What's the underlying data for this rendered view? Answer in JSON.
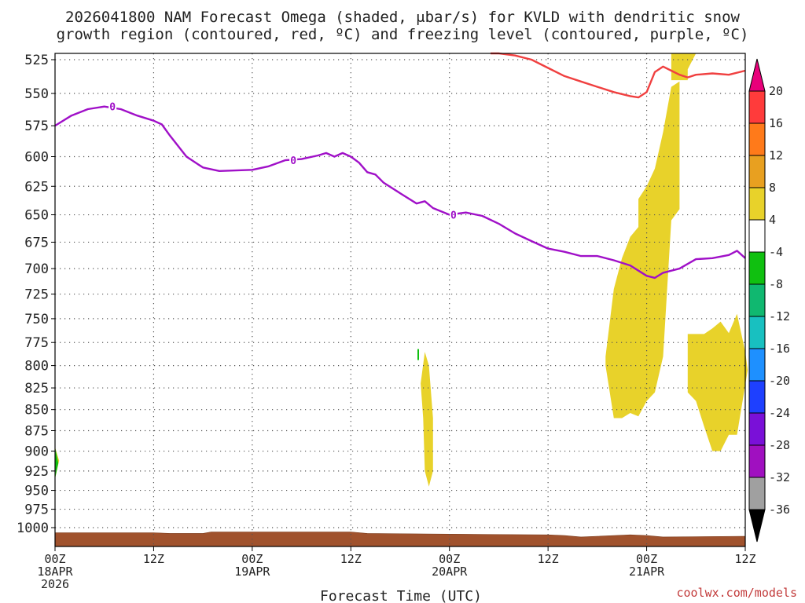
{
  "header": {
    "title_line1": "2026041800 NAM Forecast Omega (shaded, μbar/s) for KVLD with dendritic snow",
    "title_line2": "growth region (contoured, red, ºC) and freezing level (contoured, purple, ºC)"
  },
  "footer": {
    "xlabel": "Forecast Time (UTC)",
    "credit": "coolwx.com/models"
  },
  "chart_data": {
    "type": "heatmap",
    "x_unit": "forecast hours since 2026-04-18 00Z",
    "xlim": [
      0,
      84
    ],
    "ylim": [
      1020,
      515
    ],
    "y_scale": "pressure (hPa), increasing downward",
    "grid": true,
    "y_ticks": [
      525,
      550,
      575,
      600,
      625,
      650,
      675,
      700,
      725,
      750,
      775,
      800,
      825,
      850,
      875,
      900,
      925,
      950,
      975,
      1000
    ],
    "x_ticks": [
      {
        "h": 0,
        "line1": "00Z",
        "line2": "18APR",
        "line3": "2026"
      },
      {
        "h": 12,
        "line1": "12Z",
        "line2": "",
        "line3": ""
      },
      {
        "h": 24,
        "line1": "00Z",
        "line2": "19APR",
        "line3": ""
      },
      {
        "h": 36,
        "line1": "12Z",
        "line2": "",
        "line3": ""
      },
      {
        "h": 48,
        "line1": "00Z",
        "line2": "20APR",
        "line3": ""
      },
      {
        "h": 60,
        "line1": "12Z",
        "line2": "",
        "line3": ""
      },
      {
        "h": 72,
        "line1": "00Z",
        "line2": "21APR",
        "line3": ""
      },
      {
        "h": 84,
        "line1": "12Z",
        "line2": "",
        "line3": ""
      }
    ],
    "colorbar": {
      "labels": [
        "20",
        "16",
        "12",
        "8",
        "4",
        "-4",
        "-8",
        "-12",
        "-16",
        "-20",
        "-24",
        "-28",
        "-32",
        "-36"
      ],
      "colors": [
        "#e8007a",
        "#ff3b3b",
        "#ff7a1a",
        "#e8a020",
        "#e8d22a",
        "#ffffff",
        "#10c010",
        "#10b870",
        "#18c0c0",
        "#1e90ff",
        "#1e40ff",
        "#7a10d8",
        "#a010c0",
        "#a0a0a0",
        "#000000"
      ]
    },
    "freezing_level": {
      "label": "0",
      "color": "#a010c8",
      "points": [
        [
          0,
          575
        ],
        [
          2,
          567
        ],
        [
          4,
          562
        ],
        [
          6,
          560
        ],
        [
          8,
          562
        ],
        [
          10,
          567
        ],
        [
          12,
          571
        ],
        [
          13,
          574
        ],
        [
          14,
          583
        ],
        [
          16,
          600
        ],
        [
          18,
          609
        ],
        [
          20,
          612
        ],
        [
          24,
          611
        ],
        [
          26,
          608
        ],
        [
          28,
          603
        ],
        [
          30,
          602
        ],
        [
          32,
          599
        ],
        [
          33,
          597
        ],
        [
          34,
          600
        ],
        [
          35,
          597
        ],
        [
          36,
          600
        ],
        [
          37,
          605
        ],
        [
          38,
          613
        ],
        [
          39,
          615
        ],
        [
          40,
          622
        ],
        [
          42,
          631
        ],
        [
          44,
          640
        ],
        [
          45,
          638
        ],
        [
          46,
          644
        ],
        [
          48,
          650
        ],
        [
          50,
          648
        ],
        [
          52,
          651
        ],
        [
          54,
          658
        ],
        [
          56,
          667
        ],
        [
          58,
          674
        ],
        [
          60,
          681
        ],
        [
          62,
          684
        ],
        [
          64,
          688
        ],
        [
          66,
          688
        ],
        [
          68,
          692
        ],
        [
          70,
          697
        ],
        [
          71,
          702
        ],
        [
          72,
          707
        ],
        [
          73,
          709
        ],
        [
          74,
          704
        ],
        [
          76,
          700
        ],
        [
          78,
          691
        ],
        [
          80,
          690
        ],
        [
          82,
          687
        ],
        [
          83,
          683
        ],
        [
          84,
          690
        ]
      ]
    },
    "dgz_top": {
      "color": "#f04040",
      "points": [
        [
          53,
          510
        ],
        [
          54,
          513
        ],
        [
          56,
          522
        ],
        [
          58,
          525
        ],
        [
          60,
          531
        ],
        [
          62,
          537
        ],
        [
          64,
          541
        ],
        [
          66,
          545
        ],
        [
          68,
          549
        ],
        [
          70,
          552
        ],
        [
          71,
          553
        ],
        [
          72,
          549
        ],
        [
          73,
          534
        ],
        [
          74,
          530
        ],
        [
          75,
          533
        ],
        [
          76,
          536
        ],
        [
          77,
          538
        ],
        [
          78,
          536
        ],
        [
          80,
          535
        ],
        [
          82,
          536
        ],
        [
          84,
          533
        ]
      ]
    },
    "omega_shading": [
      {
        "value": 4,
        "color": "#e8d22a",
        "polygon": [
          [
            0,
            895
          ],
          [
            0.5,
            912
          ],
          [
            0,
            935
          ]
        ]
      },
      {
        "value": 4,
        "color": "#e8d22a",
        "polygon": [
          [
            45,
            785
          ],
          [
            45.5,
            800
          ],
          [
            46,
            860
          ],
          [
            46,
            925
          ],
          [
            45.5,
            945
          ],
          [
            45,
            925
          ],
          [
            44.8,
            860
          ],
          [
            44.5,
            820
          ]
        ]
      },
      {
        "value": 4,
        "color": "#e8d22a",
        "polygon": [
          [
            70,
            670
          ],
          [
            71,
            661
          ],
          [
            71,
            636
          ],
          [
            72,
            625
          ],
          [
            73,
            610
          ],
          [
            74,
            580
          ],
          [
            75,
            545
          ],
          [
            76,
            541
          ],
          [
            76,
            645
          ],
          [
            75,
            655
          ],
          [
            74,
            790
          ],
          [
            73,
            830
          ],
          [
            72,
            840
          ],
          [
            71,
            858
          ],
          [
            70,
            854
          ],
          [
            69,
            860
          ],
          [
            68,
            860
          ],
          [
            67,
            800
          ],
          [
            67,
            790
          ],
          [
            68,
            720
          ],
          [
            69,
            690
          ]
        ]
      },
      {
        "value": 4,
        "color": "#e8d22a",
        "polygon": [
          [
            75,
            515
          ],
          [
            78,
            515
          ],
          [
            77,
            532
          ],
          [
            77,
            540
          ],
          [
            75,
            540
          ]
        ]
      },
      {
        "value": 4,
        "color": "#e8d22a",
        "polygon": [
          [
            77,
            766
          ],
          [
            79,
            766
          ],
          [
            80,
            760
          ],
          [
            81,
            753
          ],
          [
            82,
            765
          ],
          [
            83,
            745
          ],
          [
            84,
            785
          ],
          [
            84.3,
            805
          ],
          [
            83,
            880
          ],
          [
            82,
            880
          ],
          [
            81,
            900
          ],
          [
            80,
            900
          ],
          [
            79,
            870
          ],
          [
            78,
            840
          ],
          [
            77,
            830
          ]
        ]
      },
      {
        "value": -4,
        "color": "#10c010",
        "polygon": [
          [
            0,
            895
          ],
          [
            0.4,
            915
          ],
          [
            0,
            935
          ]
        ]
      },
      {
        "value": -4,
        "color": "#10c010",
        "polygon": [
          [
            44.1,
            782
          ],
          [
            44.3,
            782
          ],
          [
            44.3,
            794
          ],
          [
            44.1,
            794
          ]
        ]
      }
    ],
    "terrain": {
      "color": "#a0522d",
      "surface": [
        [
          0,
          1007
        ],
        [
          12,
          1007
        ],
        [
          14,
          1008
        ],
        [
          18,
          1008
        ],
        [
          19,
          1006
        ],
        [
          36,
          1006
        ],
        [
          38,
          1008
        ],
        [
          48,
          1009
        ],
        [
          60,
          1010
        ],
        [
          62,
          1011
        ],
        [
          64,
          1013
        ],
        [
          66,
          1012
        ],
        [
          70,
          1010
        ],
        [
          72,
          1011
        ],
        [
          74,
          1013
        ],
        [
          84,
          1012
        ]
      ]
    }
  }
}
